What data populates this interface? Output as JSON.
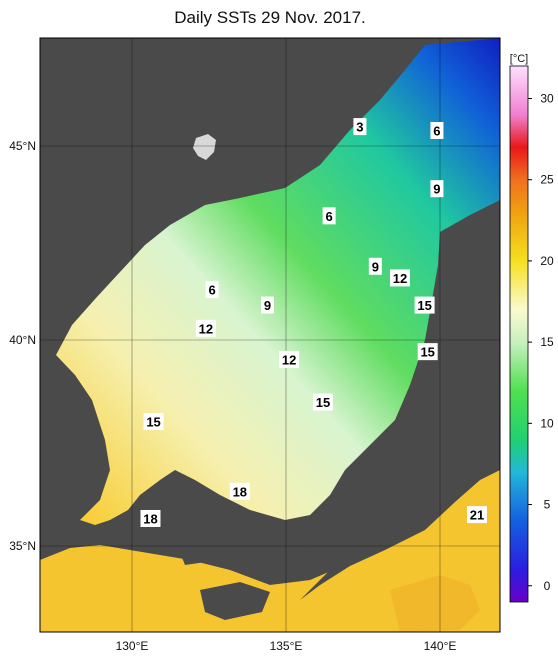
{
  "title": "Daily SSTs 29 Nov. 2017.",
  "colorbar": {
    "unit": "[°C]",
    "ticks": [
      {
        "value": 30,
        "label": "30"
      },
      {
        "value": 25,
        "label": "25"
      },
      {
        "value": 20,
        "label": "20"
      },
      {
        "value": 15,
        "label": "15"
      },
      {
        "value": 10,
        "label": "10"
      },
      {
        "value": 5,
        "label": "5"
      },
      {
        "value": 0,
        "label": "0"
      }
    ],
    "range": [
      -1,
      32
    ],
    "stops": [
      {
        "value": -1,
        "color": "#6a00c8"
      },
      {
        "value": 1,
        "color": "#2a1ee0"
      },
      {
        "value": 4,
        "color": "#1560e0"
      },
      {
        "value": 7,
        "color": "#22b8d8"
      },
      {
        "value": 9,
        "color": "#20d070"
      },
      {
        "value": 12,
        "color": "#50e050"
      },
      {
        "value": 15,
        "color": "#c8f0c0"
      },
      {
        "value": 17,
        "color": "#fafad0"
      },
      {
        "value": 20,
        "color": "#f5e020"
      },
      {
        "value": 23,
        "color": "#f0a010"
      },
      {
        "value": 25,
        "color": "#f07020"
      },
      {
        "value": 27,
        "color": "#e81818"
      },
      {
        "value": 29,
        "color": "#f080d0"
      },
      {
        "value": 32,
        "color": "#ffe0ff"
      }
    ]
  },
  "axes": {
    "lon_ticks": [
      "130°E",
      "135°E",
      "140°E"
    ],
    "lat_ticks": [
      "35°N",
      "40°N",
      "45°N"
    ]
  },
  "contour_labels": [
    {
      "text": "3",
      "lon": 137.4,
      "lat": 45.5
    },
    {
      "text": "6",
      "lon": 139.9,
      "lat": 45.4
    },
    {
      "text": "9",
      "lon": 139.9,
      "lat": 43.9
    },
    {
      "text": "6",
      "lon": 136.4,
      "lat": 43.2
    },
    {
      "text": "9",
      "lon": 137.9,
      "lat": 41.9
    },
    {
      "text": "12",
      "lon": 138.7,
      "lat": 41.6
    },
    {
      "text": "6",
      "lon": 132.6,
      "lat": 41.3
    },
    {
      "text": "9",
      "lon": 134.4,
      "lat": 40.9
    },
    {
      "text": "15",
      "lon": 139.5,
      "lat": 40.9
    },
    {
      "text": "12",
      "lon": 132.4,
      "lat": 40.3
    },
    {
      "text": "15",
      "lon": 139.6,
      "lat": 39.7
    },
    {
      "text": "12",
      "lon": 135.1,
      "lat": 39.5
    },
    {
      "text": "15",
      "lon": 136.2,
      "lat": 38.4
    },
    {
      "text": "15",
      "lon": 130.7,
      "lat": 37.9
    },
    {
      "text": "18",
      "lon": 133.5,
      "lat": 36.1
    },
    {
      "text": "18",
      "lon": 130.6,
      "lat": 35.4
    },
    {
      "text": "21",
      "lon": 141.2,
      "lat": 35.5
    }
  ]
}
